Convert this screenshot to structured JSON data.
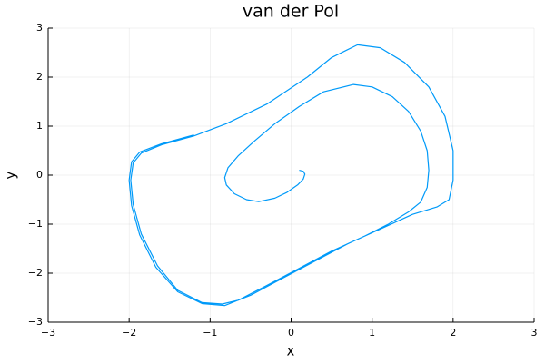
{
  "chart_data": {
    "type": "line",
    "title": "van der Pol",
    "xlabel": "x",
    "ylabel": "y",
    "x": [
      0.1,
      0.15,
      0.17,
      0.15,
      0.08,
      -0.05,
      -0.2,
      -0.4,
      -0.55,
      -0.7,
      -0.8,
      -0.82,
      -0.78,
      -0.65,
      -0.45,
      -0.2,
      0.1,
      0.4,
      0.77,
      1.0,
      1.25,
      1.45,
      1.6,
      1.68,
      1.7,
      1.68,
      1.6,
      1.45,
      1.2,
      0.9,
      0.5,
      0.1,
      -0.3,
      -0.65,
      -0.85,
      -1.1,
      -1.4,
      -1.65,
      -1.85,
      -1.95,
      -1.98,
      -1.95,
      -1.85,
      -1.6,
      -1.2,
      -0.8,
      -0.3,
      0.2,
      0.5,
      0.82,
      1.1,
      1.4,
      1.7,
      1.9,
      2.0,
      2.0,
      1.95,
      1.8,
      1.5,
      1.1,
      0.7,
      0.3,
      -0.1,
      -0.5,
      -0.82,
      -1.1,
      -1.4,
      -1.67,
      -1.87,
      -1.97,
      -2.0,
      -1.97,
      -1.87,
      -1.6,
      -1.2
    ],
    "values": [
      0.1,
      0.08,
      0.02,
      -0.08,
      -0.2,
      -0.35,
      -0.47,
      -0.54,
      -0.5,
      -0.38,
      -0.2,
      -0.05,
      0.15,
      0.4,
      0.7,
      1.05,
      1.4,
      1.7,
      1.85,
      1.8,
      1.6,
      1.3,
      0.9,
      0.5,
      0.1,
      -0.25,
      -0.55,
      -0.75,
      -1.0,
      -1.25,
      -1.55,
      -1.9,
      -2.25,
      -2.55,
      -2.63,
      -2.6,
      -2.35,
      -1.85,
      -1.2,
      -0.6,
      -0.1,
      0.25,
      0.45,
      0.62,
      0.8,
      1.05,
      1.45,
      2.0,
      2.4,
      2.66,
      2.6,
      2.3,
      1.8,
      1.2,
      0.5,
      -0.1,
      -0.5,
      -0.65,
      -0.8,
      -1.1,
      -1.4,
      -1.75,
      -2.1,
      -2.45,
      -2.66,
      -2.62,
      -2.38,
      -1.88,
      -1.22,
      -0.62,
      -0.1,
      0.27,
      0.47,
      0.64,
      0.82
    ],
    "color": "#009af9",
    "xlim": [
      -3,
      3
    ],
    "ylim": [
      -3,
      3
    ],
    "xticks": [
      {
        "value": -3,
        "label": "−3"
      },
      {
        "value": -2,
        "label": "−2"
      },
      {
        "value": -1,
        "label": "−1"
      },
      0,
      1,
      2,
      3
    ],
    "yticks": [
      {
        "value": -3,
        "label": "−3"
      },
      {
        "value": -2,
        "label": "−2"
      },
      {
        "value": -1,
        "label": "−1"
      },
      0,
      1,
      2,
      3
    ],
    "grid": true
  }
}
